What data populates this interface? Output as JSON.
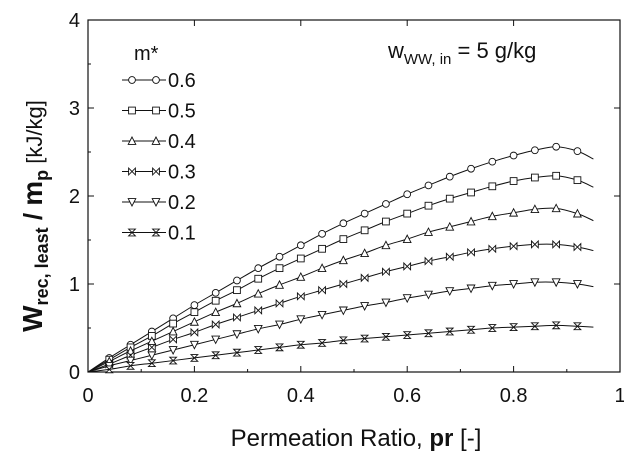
{
  "chart_data": {
    "type": "line",
    "xlabel": {
      "main": "Permeation Ratio, ",
      "bold": "pr",
      "tail": " [-]"
    },
    "ylabel": {
      "w": "W",
      "wsub": "rec, least",
      "slash": " / ",
      "m": "m",
      "msub": "p",
      "unit": " [kJ/kg]"
    },
    "annotation": {
      "w": "w",
      "sub": "WW, in",
      "rest": " = 5 g/kg"
    },
    "xlim": [
      0,
      1
    ],
    "ylim": [
      0,
      4
    ],
    "x_ticks": [
      0,
      0.2,
      0.4,
      0.6,
      0.8,
      1
    ],
    "x_tick_labels": [
      "0",
      "0.2",
      "0.4",
      "0.6",
      "0.8",
      "1"
    ],
    "y_ticks": [
      0,
      1,
      2,
      3,
      4
    ],
    "y_tick_labels": [
      "0",
      "1",
      "2",
      "3",
      "4"
    ],
    "grid": false,
    "legend_title": "m*",
    "legend_position": "top-left",
    "x": [
      0,
      0.04,
      0.08,
      0.12,
      0.16,
      0.2,
      0.24,
      0.28,
      0.32,
      0.36,
      0.4,
      0.44,
      0.48,
      0.52,
      0.56,
      0.6,
      0.64,
      0.68,
      0.72,
      0.76,
      0.8,
      0.84,
      0.88,
      0.92,
      0.95
    ],
    "series": [
      {
        "name": "0.6",
        "marker": "circle",
        "values": [
          0,
          0.16,
          0.31,
          0.46,
          0.61,
          0.76,
          0.9,
          1.04,
          1.18,
          1.31,
          1.44,
          1.57,
          1.69,
          1.8,
          1.91,
          2.02,
          2.12,
          2.22,
          2.31,
          2.39,
          2.46,
          2.52,
          2.56,
          2.51,
          2.42
        ]
      },
      {
        "name": "0.5",
        "marker": "square",
        "values": [
          0,
          0.14,
          0.28,
          0.41,
          0.55,
          0.68,
          0.81,
          0.93,
          1.06,
          1.18,
          1.29,
          1.4,
          1.51,
          1.61,
          1.71,
          1.8,
          1.89,
          1.97,
          2.04,
          2.11,
          2.17,
          2.21,
          2.23,
          2.18,
          2.1
        ]
      },
      {
        "name": "0.4",
        "marker": "triangle-up",
        "values": [
          0,
          0.12,
          0.24,
          0.35,
          0.46,
          0.57,
          0.68,
          0.78,
          0.89,
          0.99,
          1.08,
          1.18,
          1.27,
          1.35,
          1.44,
          1.51,
          1.59,
          1.65,
          1.71,
          1.77,
          1.81,
          1.85,
          1.86,
          1.8,
          1.72
        ]
      },
      {
        "name": "0.3",
        "marker": "bowtie",
        "values": [
          0,
          0.09,
          0.19,
          0.28,
          0.37,
          0.45,
          0.54,
          0.62,
          0.7,
          0.78,
          0.86,
          0.93,
          1.0,
          1.07,
          1.14,
          1.2,
          1.26,
          1.31,
          1.36,
          1.4,
          1.43,
          1.45,
          1.45,
          1.42,
          1.38
        ]
      },
      {
        "name": "0.2",
        "marker": "triangle-down",
        "values": [
          0,
          0.07,
          0.13,
          0.19,
          0.25,
          0.31,
          0.37,
          0.43,
          0.49,
          0.54,
          0.6,
          0.65,
          0.7,
          0.75,
          0.79,
          0.84,
          0.88,
          0.92,
          0.95,
          0.98,
          1.0,
          1.02,
          1.02,
          1.0,
          0.97
        ]
      },
      {
        "name": "0.1",
        "marker": "hourglass",
        "values": [
          0,
          0.03,
          0.07,
          0.1,
          0.13,
          0.16,
          0.19,
          0.22,
          0.25,
          0.28,
          0.31,
          0.33,
          0.36,
          0.38,
          0.4,
          0.42,
          0.44,
          0.46,
          0.48,
          0.5,
          0.51,
          0.52,
          0.53,
          0.52,
          0.51
        ]
      }
    ]
  }
}
